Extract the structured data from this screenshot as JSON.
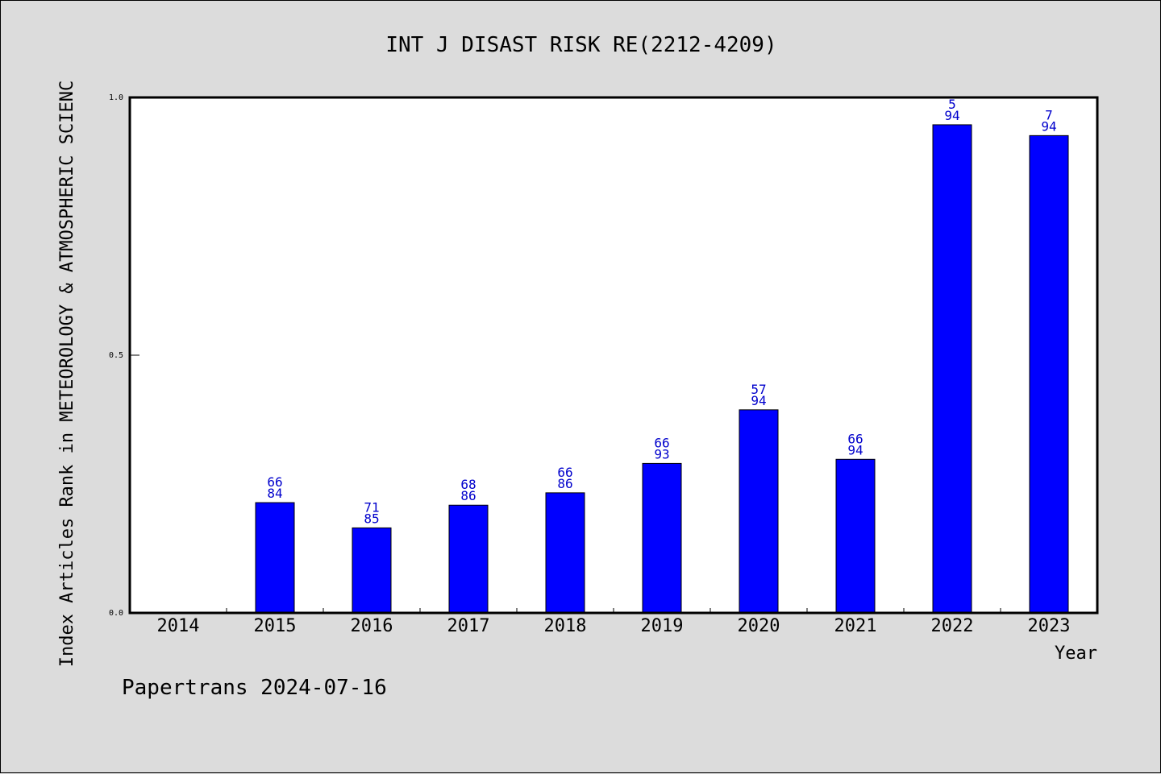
{
  "chart_data": {
    "type": "bar",
    "title": "INT J DISAST RISK RE(2212-4209)",
    "xlabel": "Year",
    "ylabel": "Index Articles Rank in METEOROLOGY & ATMOSPHERIC SCIENC",
    "ylim": [
      0,
      1.0
    ],
    "yticks": [
      "0.0",
      "0.5",
      "1.0"
    ],
    "grid": false,
    "categories": [
      "2014",
      "2015",
      "2016",
      "2017",
      "2018",
      "2019",
      "2020",
      "2021",
      "2022",
      "2023"
    ],
    "values": [
      0,
      0.214,
      0.165,
      0.209,
      0.233,
      0.29,
      0.394,
      0.298,
      0.947,
      0.926
    ],
    "labels": [
      null,
      [
        "66",
        "84"
      ],
      [
        "71",
        "85"
      ],
      [
        "68",
        "86"
      ],
      [
        "66",
        "86"
      ],
      [
        "66",
        "93"
      ],
      [
        "57",
        "94"
      ],
      [
        "66",
        "94"
      ],
      [
        "5",
        "94"
      ],
      [
        "7",
        "94"
      ]
    ],
    "bar_color": "#0000ff",
    "label_color": "#0000cc"
  },
  "footer": "Papertrans 2024-07-16"
}
